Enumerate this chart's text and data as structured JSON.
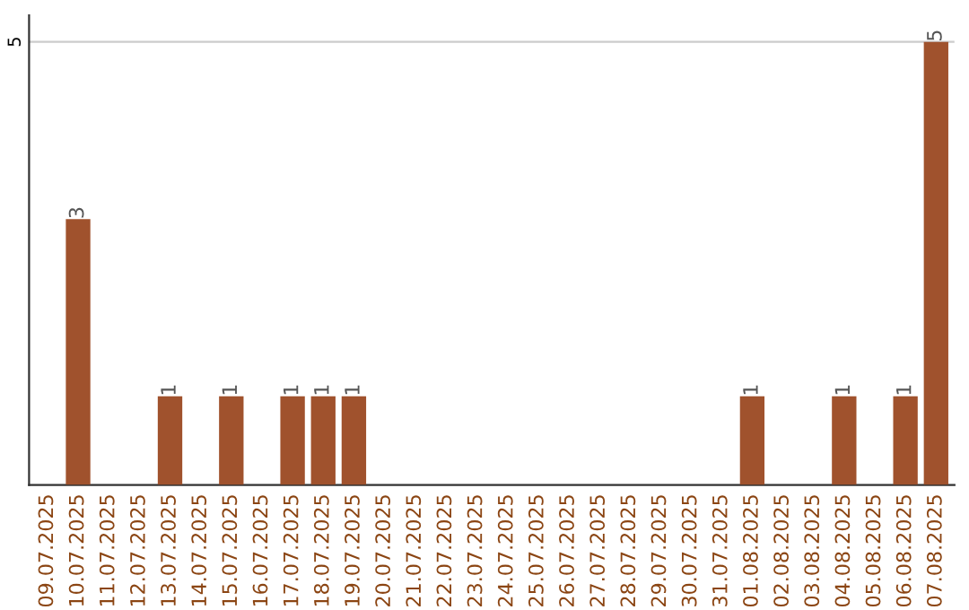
{
  "chart_data": {
    "type": "bar",
    "categories": [
      "09.07.2025",
      "10.07.2025",
      "11.07.2025",
      "12.07.2025",
      "13.07.2025",
      "14.07.2025",
      "15.07.2025",
      "16.07.2025",
      "17.07.2025",
      "18.07.2025",
      "19.07.2025",
      "20.07.2025",
      "21.07.2025",
      "22.07.2025",
      "23.07.2025",
      "24.07.2025",
      "25.07.2025",
      "26.07.2025",
      "27.07.2025",
      "28.07.2025",
      "29.07.2025",
      "30.07.2025",
      "31.07.2025",
      "01.08.2025",
      "02.08.2025",
      "03.08.2025",
      "04.08.2025",
      "05.08.2025",
      "06.08.2025",
      "07.08.2025"
    ],
    "values": [
      0,
      3,
      0,
      0,
      1,
      0,
      1,
      0,
      1,
      1,
      1,
      0,
      0,
      0,
      0,
      0,
      0,
      0,
      0,
      0,
      0,
      0,
      0,
      1,
      0,
      0,
      1,
      0,
      1,
      5
    ],
    "value_labels": [
      null,
      "3",
      null,
      null,
      "1",
      null,
      "1",
      null,
      "1",
      "1",
      "1",
      null,
      null,
      null,
      null,
      null,
      null,
      null,
      null,
      null,
      null,
      null,
      null,
      "1",
      null,
      null,
      "1",
      null,
      "1",
      "5"
    ],
    "color": "#a0522d",
    "ylim": [
      0,
      5.3
    ],
    "yticks": [
      5
    ],
    "grid": "y"
  }
}
